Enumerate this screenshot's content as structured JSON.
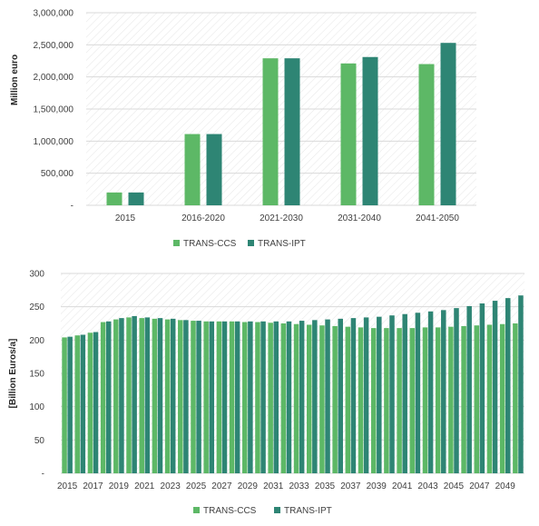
{
  "colors": {
    "ccs": "#5db866",
    "ipt": "#2e8574",
    "grid": "#d9d9d9",
    "hatch": "#e4e4e4",
    "axis": "#bfbfbf"
  },
  "chart_data": [
    {
      "type": "bar",
      "title": "",
      "xlabel": "",
      "ylabel": "Million euro",
      "ylim": [
        0,
        3000000
      ],
      "yticks": [
        "-",
        "500,000",
        "1,000,000",
        "1,500,000",
        "2,000,000",
        "2,500,000",
        "3,000,000"
      ],
      "grid": true,
      "legend_position": "bottom",
      "categories": [
        "2015",
        "2016-2020",
        "2021-2030",
        "2031-2040",
        "2041-2050"
      ],
      "series": [
        {
          "name": "TRANS-CCS",
          "color": "#5db866",
          "values": [
            200000,
            1110000,
            2290000,
            2210000,
            2200000
          ]
        },
        {
          "name": "TRANS-IPT",
          "color": "#2e8574",
          "values": [
            200000,
            1110000,
            2290000,
            2310000,
            2530000
          ]
        }
      ]
    },
    {
      "type": "bar",
      "title": "",
      "xlabel": "",
      "ylabel": "[Billion Euros/a]",
      "ylim": [
        0,
        300
      ],
      "yticks": [
        "-",
        "50",
        "100",
        "150",
        "200",
        "250",
        "300"
      ],
      "grid": true,
      "legend_position": "bottom",
      "x": [
        2015,
        2016,
        2017,
        2018,
        2019,
        2020,
        2021,
        2022,
        2023,
        2024,
        2025,
        2026,
        2027,
        2028,
        2029,
        2030,
        2031,
        2032,
        2033,
        2034,
        2035,
        2036,
        2037,
        2038,
        2039,
        2040,
        2041,
        2042,
        2043,
        2044,
        2045,
        2046,
        2047,
        2048,
        2049,
        2050
      ],
      "xtick_labels": [
        "2015",
        "2017",
        "2019",
        "2021",
        "2023",
        "2025",
        "2027",
        "2029",
        "2031",
        "2033",
        "2035",
        "2037",
        "2039",
        "2041",
        "2043",
        "2045",
        "2047",
        "2049"
      ],
      "series": [
        {
          "name": "TRANS-CCS",
          "color": "#5db866",
          "values": [
            204,
            207,
            211,
            227,
            231,
            234,
            233,
            232,
            231,
            230,
            229,
            228,
            228,
            228,
            227,
            227,
            226,
            225,
            224,
            223,
            222,
            221,
            220,
            219,
            218,
            218,
            218,
            218,
            219,
            219,
            220,
            221,
            222,
            223,
            224,
            225
          ]
        },
        {
          "name": "TRANS-IPT",
          "color": "#2e8574",
          "values": [
            205,
            208,
            212,
            228,
            233,
            236,
            234,
            233,
            232,
            230,
            229,
            228,
            228,
            228,
            228,
            228,
            228,
            228,
            229,
            230,
            231,
            232,
            233,
            234,
            235,
            237,
            239,
            241,
            243,
            245,
            248,
            251,
            255,
            259,
            263,
            267
          ]
        }
      ]
    }
  ]
}
